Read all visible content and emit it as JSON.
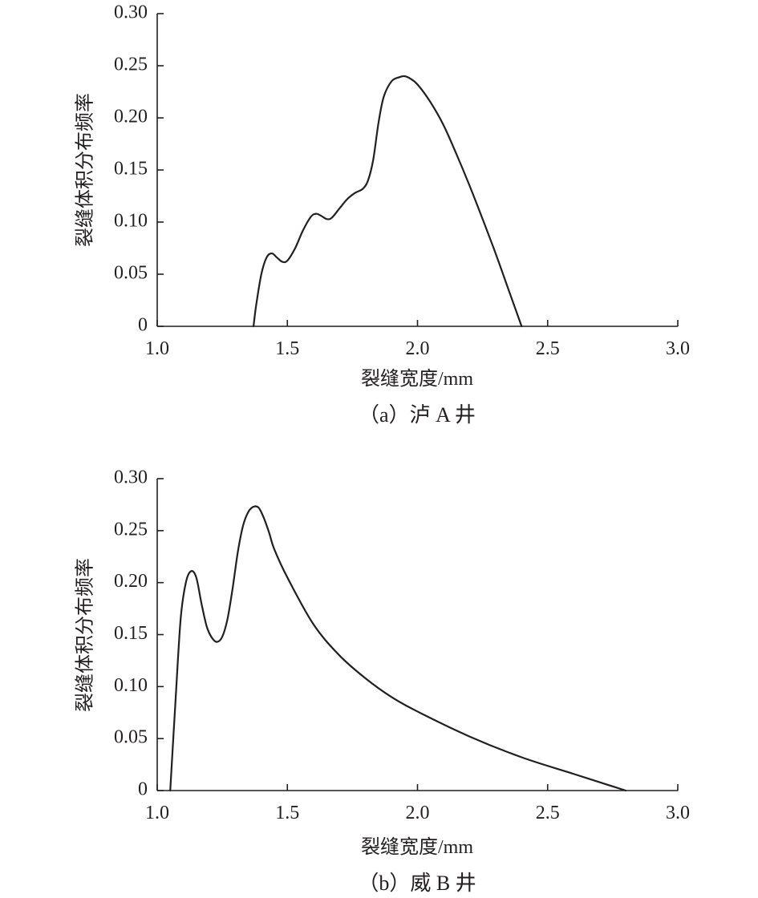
{
  "chart_data": [
    {
      "type": "line",
      "caption": "（a）泸 A 井",
      "xlabel": "裂缝宽度/mm",
      "ylabel": "裂缝体积分布频率",
      "xlim": [
        1.0,
        3.0
      ],
      "ylim": [
        0,
        0.3
      ],
      "xticks": [
        "1.0",
        "1.5",
        "2.0",
        "2.5",
        "3.0"
      ],
      "yticks": [
        "0",
        "0.05",
        "0.10",
        "0.15",
        "0.20",
        "0.25",
        "0.30"
      ],
      "grid": false,
      "series": [
        {
          "x": [
            1.37,
            1.38,
            1.4,
            1.42,
            1.44,
            1.46,
            1.48,
            1.5,
            1.53,
            1.56,
            1.59,
            1.61,
            1.63,
            1.65,
            1.67,
            1.7,
            1.73,
            1.76,
            1.79,
            1.81,
            1.83,
            1.85,
            1.87,
            1.9,
            1.93,
            1.95,
            1.97,
            2.0,
            2.05,
            2.1,
            2.15,
            2.2,
            2.25,
            2.3,
            2.35,
            2.4
          ],
          "y": [
            0.0,
            0.02,
            0.05,
            0.066,
            0.07,
            0.066,
            0.062,
            0.063,
            0.075,
            0.092,
            0.105,
            0.108,
            0.106,
            0.103,
            0.104,
            0.113,
            0.122,
            0.128,
            0.132,
            0.14,
            0.16,
            0.195,
            0.22,
            0.235,
            0.239,
            0.24,
            0.238,
            0.232,
            0.215,
            0.193,
            0.165,
            0.135,
            0.103,
            0.07,
            0.035,
            0.0
          ]
        }
      ]
    },
    {
      "type": "line",
      "caption": "（b）威 B 井",
      "xlabel": "裂缝宽度/mm",
      "ylabel": "裂缝体积分布频率",
      "xlim": [
        1.0,
        3.0
      ],
      "ylim": [
        0,
        0.3
      ],
      "xticks": [
        "1.0",
        "1.5",
        "2.0",
        "2.5",
        "3.0"
      ],
      "yticks": [
        "0",
        "0.05",
        "0.10",
        "0.15",
        "0.20",
        "0.25",
        "0.30"
      ],
      "grid": false,
      "series": [
        {
          "x": [
            1.05,
            1.07,
            1.09,
            1.11,
            1.13,
            1.15,
            1.17,
            1.19,
            1.21,
            1.23,
            1.25,
            1.27,
            1.29,
            1.31,
            1.33,
            1.35,
            1.37,
            1.39,
            1.41,
            1.43,
            1.45,
            1.5,
            1.6,
            1.7,
            1.8,
            1.9,
            2.0,
            2.2,
            2.4,
            2.6,
            2.8
          ],
          "y": [
            0.0,
            0.085,
            0.165,
            0.2,
            0.211,
            0.205,
            0.18,
            0.158,
            0.147,
            0.143,
            0.148,
            0.165,
            0.195,
            0.23,
            0.255,
            0.268,
            0.273,
            0.272,
            0.262,
            0.248,
            0.232,
            0.205,
            0.16,
            0.13,
            0.108,
            0.09,
            0.076,
            0.052,
            0.032,
            0.016,
            0.0
          ]
        }
      ]
    }
  ]
}
